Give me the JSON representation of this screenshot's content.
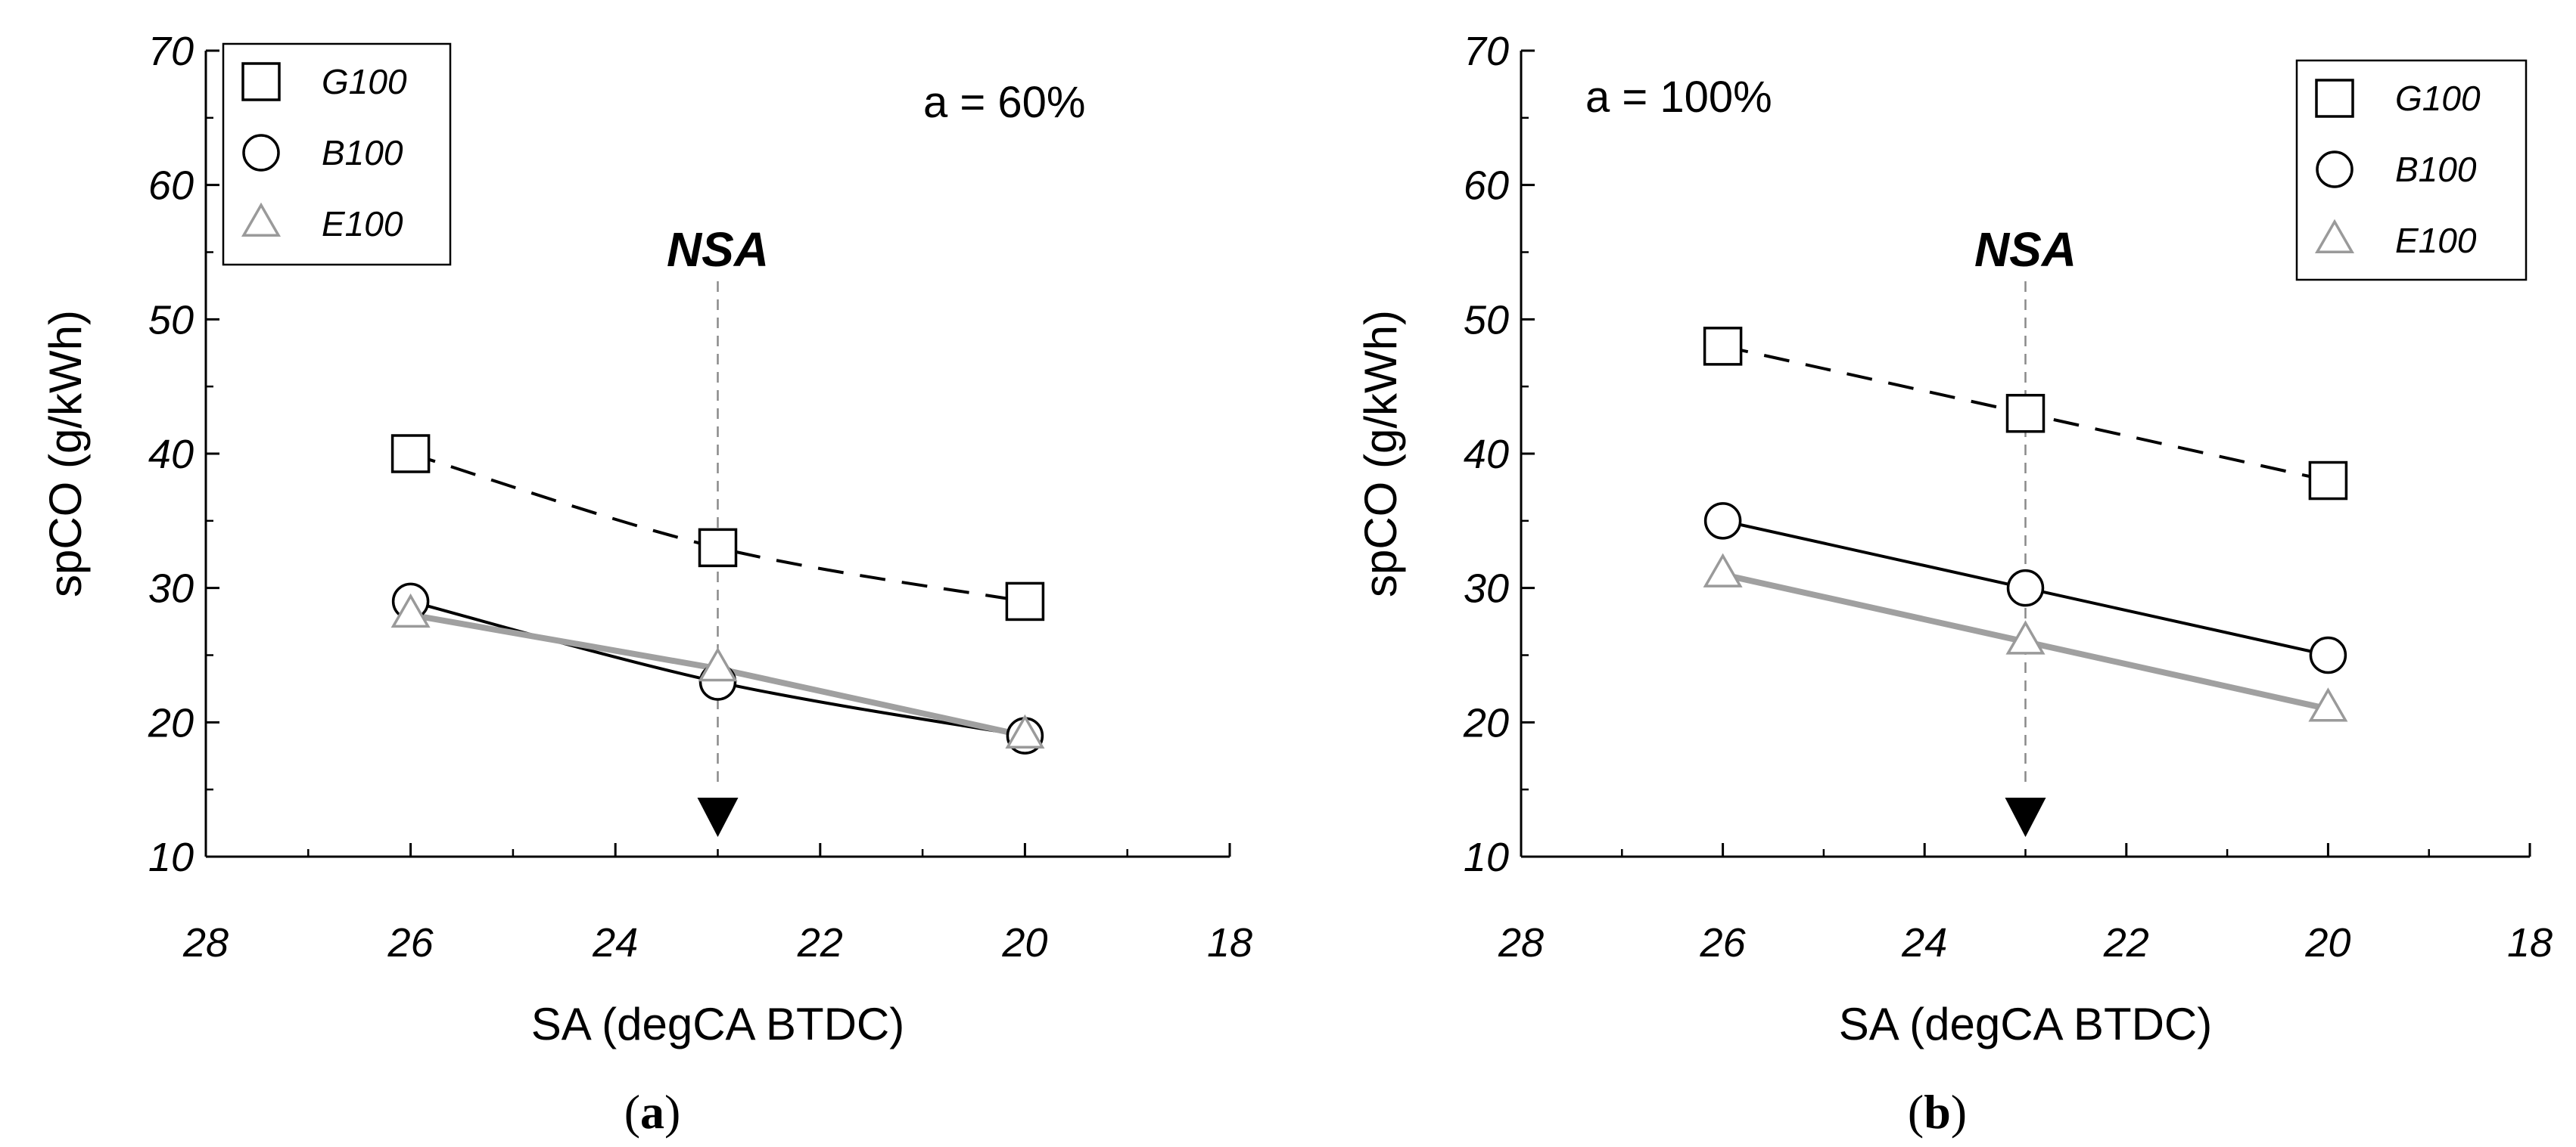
{
  "chart_data": [
    {
      "type": "line",
      "panel_label": {
        "open": "(",
        "letter": "a",
        "close": ")"
      },
      "annotation": "a = 60%",
      "marker_label": "NSA",
      "marker_x": 23,
      "xlabel": "SA (degCA BTDC)",
      "ylabel": "spCO (g/kWh)",
      "xlim": [
        28,
        18
      ],
      "ylim": [
        10,
        70
      ],
      "x_ticks": [
        28,
        26,
        24,
        22,
        20,
        18
      ],
      "y_ticks": [
        10,
        20,
        30,
        40,
        50,
        60,
        70
      ],
      "legend_position": "top-left",
      "x": [
        26,
        23,
        20
      ],
      "series": [
        {
          "name": "G100",
          "marker": "square",
          "color": "#000000",
          "line": "dashed",
          "values": [
            40,
            33,
            29
          ]
        },
        {
          "name": "B100",
          "marker": "circle",
          "color": "#000000",
          "line": "solid",
          "values": [
            29,
            23,
            19
          ]
        },
        {
          "name": "E100",
          "marker": "triangle",
          "color": "#a0a0a0",
          "line": "solid-thick",
          "values": [
            28,
            24,
            19
          ]
        }
      ]
    },
    {
      "type": "line",
      "panel_label": {
        "open": "(",
        "letter": "b",
        "close": ")"
      },
      "annotation": "a = 100%",
      "marker_label": "NSA",
      "marker_x": 23,
      "xlabel": "SA (degCA BTDC)",
      "ylabel": "spCO (g/kWh)",
      "xlim": [
        28,
        18
      ],
      "ylim": [
        10,
        70
      ],
      "x_ticks": [
        28,
        26,
        24,
        22,
        20,
        18
      ],
      "y_ticks": [
        10,
        20,
        30,
        40,
        50,
        60,
        70
      ],
      "legend_position": "top-right",
      "x": [
        26,
        23,
        20
      ],
      "series": [
        {
          "name": "G100",
          "marker": "square",
          "color": "#000000",
          "line": "dashed",
          "values": [
            48,
            43,
            38
          ]
        },
        {
          "name": "B100",
          "marker": "circle",
          "color": "#000000",
          "line": "solid",
          "values": [
            35,
            30,
            25
          ]
        },
        {
          "name": "E100",
          "marker": "triangle",
          "color": "#a0a0a0",
          "line": "solid-thick",
          "values": [
            31,
            26,
            21
          ]
        }
      ]
    }
  ]
}
